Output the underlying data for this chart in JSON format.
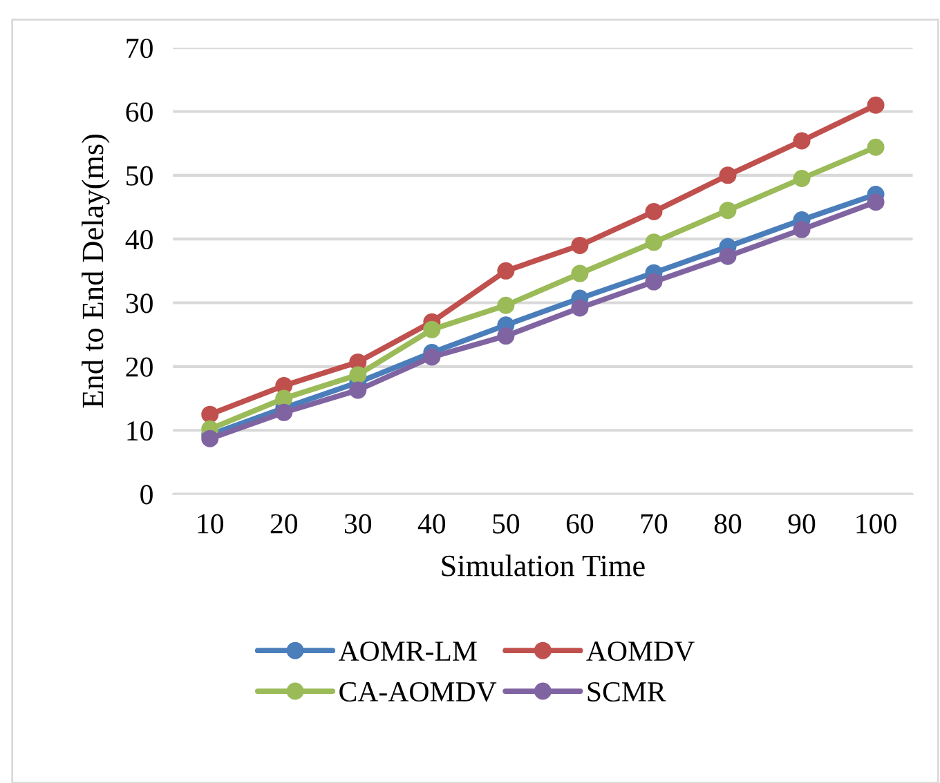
{
  "chart_data": {
    "type": "line",
    "xlabel": "Simulation Time",
    "ylabel": "End to End Delay(ms)",
    "categories": [
      "10",
      "20",
      "30",
      "40",
      "50",
      "60",
      "70",
      "80",
      "90",
      "100"
    ],
    "series": [
      {
        "name": "AOMR-LM",
        "color": "#4a7ebb",
        "values": [
          9.3,
          13.5,
          17.5,
          22.2,
          26.5,
          30.7,
          34.7,
          38.8,
          43.0,
          47.0
        ]
      },
      {
        "name": "AOMDV",
        "color": "#c0504d",
        "values": [
          12.5,
          17.0,
          20.7,
          27.0,
          35.0,
          39.0,
          44.3,
          50.0,
          55.4,
          61.0
        ]
      },
      {
        "name": "CA-AOMDV",
        "color": "#9bbb59",
        "values": [
          10.2,
          15.0,
          18.7,
          25.8,
          29.6,
          34.6,
          39.5,
          44.5,
          49.5,
          54.4
        ]
      },
      {
        "name": "SCMR",
        "color": "#8064a2",
        "values": [
          8.7,
          12.8,
          16.3,
          21.5,
          24.8,
          29.2,
          33.3,
          37.3,
          41.5,
          45.8
        ]
      }
    ],
    "ylim": [
      0,
      70
    ],
    "yticks": [
      0,
      10,
      20,
      30,
      40,
      50,
      60,
      70
    ],
    "grid": "y",
    "legend": "bottom",
    "marker": "circle",
    "line_style": "solid"
  }
}
